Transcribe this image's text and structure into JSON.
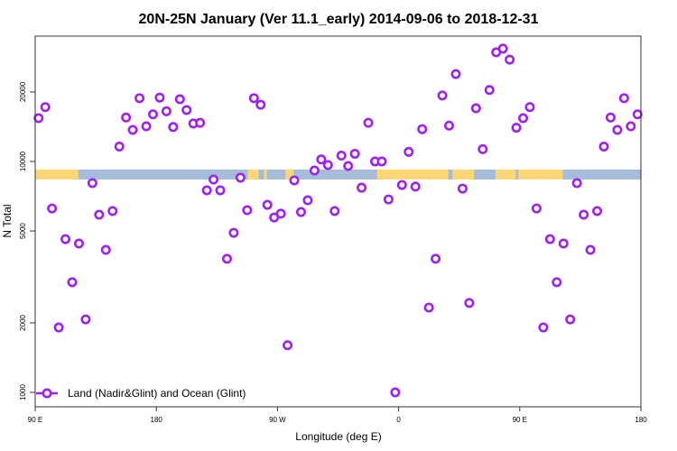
{
  "chart_data": {
    "type": "scatter",
    "title": "20N-25N January (Ver 11.1_early)   2014-09-06 to 2018-12-31",
    "xlabel": "Longitude (deg E)",
    "ylabel": "N Total",
    "y_scale": "log",
    "ylim": [
      1000,
      40000
    ],
    "y_ticks": [
      1000,
      2000,
      5000,
      10000,
      20000
    ],
    "y_tick_labels": [
      "1000",
      "2000",
      "5000",
      "10000",
      "20000"
    ],
    "x_axis_span": "90 E eastward through 180, 90 W, 0, 90 E to 180 (90E-180 segment repeated)",
    "x_tick_labels": [
      "90 E",
      "180",
      "90 W",
      "0",
      "90 E",
      "180"
    ],
    "grid": false,
    "legend_position": "bottom-left",
    "colors": {
      "marker": "#a020f0",
      "ocean": "#a6bdda",
      "land": "#fdd775"
    },
    "land_band_lon_ranges": [
      [
        90,
        122
      ],
      [
        -112,
        -104
      ],
      [
        -100,
        -98
      ],
      [
        -84,
        -78
      ],
      [
        -16,
        37
      ],
      [
        40,
        56
      ],
      [
        72,
        87
      ],
      [
        89,
        92
      ]
    ],
    "series": [
      {
        "name": "Land (Nadir&Glint) and Ocean (Glint)",
        "x": [
          92.5,
          97.5,
          102.5,
          107.5,
          112.5,
          117.5,
          122.5,
          127.5,
          132.5,
          137.5,
          142.5,
          147.5,
          152.5,
          157.5,
          162.5,
          167.5,
          172.5,
          177.5,
          -177.5,
          -172.5,
          -167.5,
          -162.5,
          -157.5,
          -152.5,
          -147.5,
          -142.5,
          -137.5,
          -132.5,
          -127.5,
          -122.5,
          -117.5,
          -112.5,
          -107.5,
          -102.5,
          -97.5,
          -92.5,
          -87.5,
          -82.5,
          -77.5,
          -72.5,
          -67.5,
          -62.5,
          -57.5,
          -52.5,
          -47.5,
          -42.5,
          -37.5,
          -32.5,
          -27.5,
          -22.5,
          -17.5,
          -12.5,
          -7.5,
          -2.5,
          2.5,
          7.5,
          12.5,
          17.5,
          22.5,
          27.5,
          32.5,
          37.5,
          42.5,
          47.5,
          52.5,
          57.5,
          62.5,
          67.5,
          72.5,
          77.5,
          82.5,
          87.5
        ],
        "y": [
          15400,
          17200,
          6260,
          1910,
          4610,
          3000,
          4410,
          2070,
          8060,
          5880,
          4140,
          6100,
          11600,
          15500,
          13700,
          18800,
          14200,
          16000,
          18900,
          16500,
          14100,
          18600,
          16700,
          14600,
          14700,
          7500,
          8350,
          7500,
          3790,
          4910,
          8510,
          6150,
          18800,
          17600,
          6490,
          5720,
          5940,
          1600,
          8280,
          6040,
          6790,
          9140,
          10200,
          9650,
          6100,
          10600,
          9560,
          10800,
          7700,
          14700,
          10000,
          10000,
          6850,
          1000,
          7910,
          11000,
          7780,
          13800,
          2330,
          3790,
          19300,
          14300,
          23900,
          7630,
          2440,
          17000,
          11300,
          20400,
          29700,
          30800,
          27600,
          14000
        ]
      }
    ]
  }
}
